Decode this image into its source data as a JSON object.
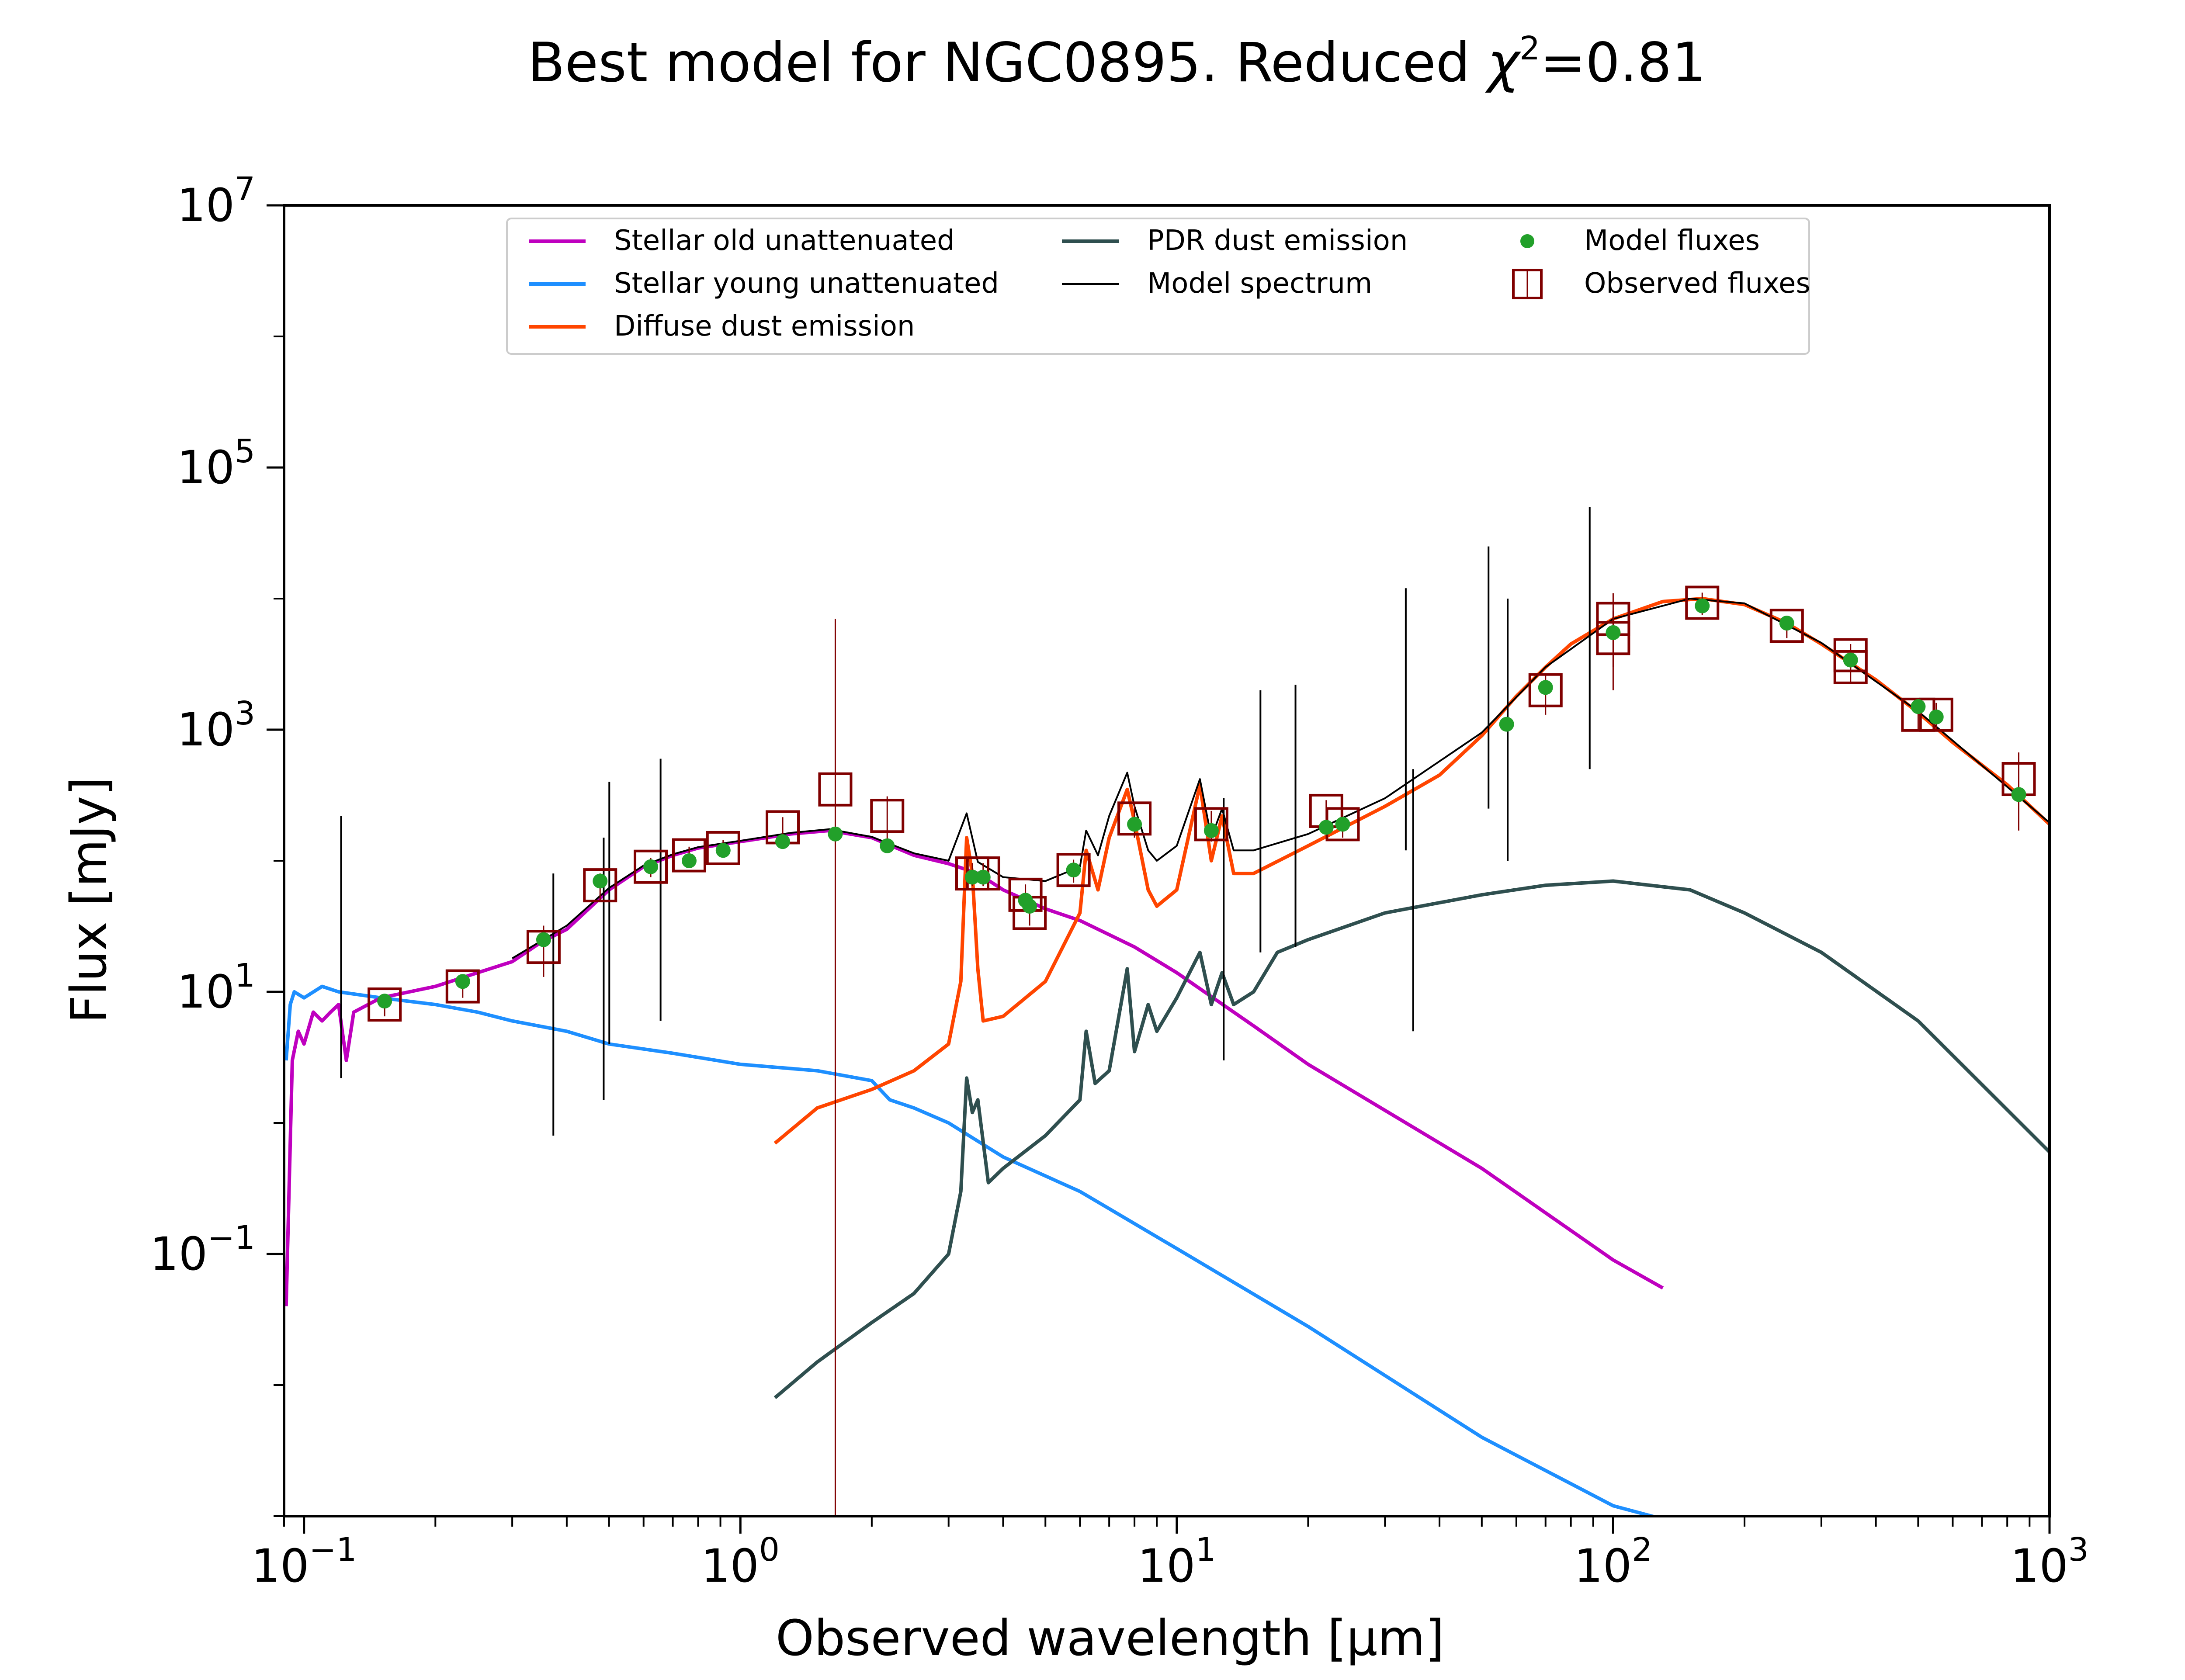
{
  "chart_data": {
    "type": "line",
    "title": "Best model for NGC0895. Reduced χ²=0.81",
    "title_parts": {
      "prefix": "Best model for NGC0895. Reduced ",
      "symbol": "χ",
      "exponent": "2",
      "suffix": "=0.81"
    },
    "xlabel": "Observed wavelength [μm]",
    "ylabel": "Flux [mJy]",
    "x_scale": "log",
    "y_scale": "log",
    "xlim": [
      0.09,
      1000
    ],
    "ylim": [
      0.001,
      10000000
    ],
    "grid": false,
    "legend_position": "top-center",
    "xticks": [
      {
        "base": "10",
        "exp": "−1",
        "value": 0.1
      },
      {
        "base": "10",
        "exp": "0",
        "value": 1
      },
      {
        "base": "10",
        "exp": "1",
        "value": 10
      },
      {
        "base": "10",
        "exp": "2",
        "value": 100
      },
      {
        "base": "10",
        "exp": "3",
        "value": 1000
      }
    ],
    "yticks": [
      {
        "base": "10",
        "exp": "−1",
        "value": 0.1
      },
      {
        "base": "10",
        "exp": "1",
        "value": 10
      },
      {
        "base": "10",
        "exp": "3",
        "value": 1000
      },
      {
        "base": "10",
        "exp": "5",
        "value": 100000
      },
      {
        "base": "10",
        "exp": "7",
        "value": 10000000
      }
    ],
    "series": [
      {
        "name": "Stellar old unattenuated",
        "color": "#bf00bf",
        "x": [
          0.091,
          0.094,
          0.097,
          0.1,
          0.105,
          0.11,
          0.115,
          0.12,
          0.125,
          0.13,
          0.15,
          0.2,
          0.25,
          0.3,
          0.35,
          0.4,
          0.5,
          0.6,
          0.7,
          0.8,
          1.0,
          1.3,
          1.6,
          2.0,
          2.5,
          3.0,
          3.5,
          4.0,
          5.0,
          6.0,
          8.0,
          10,
          15,
          20,
          50,
          100,
          130
        ],
        "y": [
          0.04,
          3,
          5,
          4,
          7,
          6,
          7,
          8,
          3,
          7,
          9,
          11,
          14,
          17,
          24,
          30,
          60,
          90,
          110,
          125,
          140,
          160,
          170,
          150,
          110,
          95,
          80,
          60,
          43,
          35,
          22,
          14,
          5.5,
          2.8,
          0.45,
          0.09,
          0.055
        ]
      },
      {
        "name": "Stellar young unattenuated",
        "color": "#1e8fff",
        "x": [
          0.091,
          0.093,
          0.095,
          0.1,
          0.11,
          0.12,
          0.15,
          0.2,
          0.25,
          0.3,
          0.4,
          0.5,
          0.7,
          1.0,
          1.5,
          2.0,
          2.2,
          2.5,
          3.0,
          4.0,
          6.0,
          10,
          20,
          50,
          100,
          130
        ],
        "y": [
          3,
          8,
          10,
          9,
          11,
          10,
          9,
          8,
          7,
          6,
          5,
          4,
          3.4,
          2.8,
          2.5,
          2.1,
          1.5,
          1.3,
          1.0,
          0.55,
          0.3,
          0.11,
          0.028,
          0.004,
          0.0012,
          0.00095
        ]
      },
      {
        "name": "Diffuse dust emission",
        "color": "#ff4500",
        "x": [
          1.2,
          1.5,
          2.0,
          2.5,
          3.0,
          3.2,
          3.3,
          3.4,
          3.5,
          3.6,
          4.0,
          5.0,
          6.0,
          6.2,
          6.6,
          7.0,
          7.7,
          8.0,
          8.6,
          9.0,
          10,
          11.3,
          12,
          12.7,
          13.5,
          15,
          20,
          30,
          40,
          50,
          60,
          70,
          80,
          100,
          130,
          160,
          200,
          250,
          300,
          400,
          500,
          600,
          800,
          1000
        ],
        "y": [
          0.7,
          1.3,
          1.8,
          2.5,
          4,
          12,
          150,
          80,
          15,
          6,
          6.5,
          12,
          40,
          120,
          60,
          150,
          350,
          200,
          60,
          45,
          60,
          380,
          100,
          220,
          80,
          80,
          130,
          260,
          450,
          900,
          1800,
          3000,
          4500,
          7000,
          9500,
          10000,
          9000,
          6500,
          4500,
          2400,
          1350,
          800,
          380,
          190
        ]
      },
      {
        "name": "PDR dust emission",
        "color": "#2f4f4f",
        "x": [
          1.2,
          1.5,
          2.0,
          2.5,
          3.0,
          3.2,
          3.3,
          3.4,
          3.5,
          3.7,
          4.0,
          5.0,
          6.0,
          6.2,
          6.5,
          7.0,
          7.7,
          8.0,
          8.6,
          9.0,
          10,
          11.3,
          12,
          12.7,
          13.5,
          15,
          17,
          20,
          30,
          50,
          70,
          100,
          150,
          200,
          300,
          500,
          1000
        ],
        "y": [
          0.008,
          0.015,
          0.03,
          0.05,
          0.1,
          0.3,
          2.2,
          1.2,
          1.5,
          0.35,
          0.45,
          0.8,
          1.5,
          5,
          2,
          2.5,
          15,
          3.5,
          8,
          5,
          9,
          20,
          8,
          14,
          8,
          10,
          20,
          25,
          40,
          55,
          65,
          70,
          60,
          40,
          20,
          6,
          0.6
        ]
      },
      {
        "name": "Model spectrum",
        "color": "#000000",
        "x": [
          0.3,
          0.4,
          0.5,
          0.6,
          0.7,
          0.8,
          1.0,
          1.3,
          1.6,
          2.0,
          2.5,
          3.0,
          3.3,
          3.5,
          4.0,
          5.0,
          6.0,
          6.2,
          6.6,
          7.0,
          7.7,
          8.0,
          8.6,
          9.0,
          10,
          11.3,
          12,
          12.7,
          13.5,
          15,
          20,
          30,
          50,
          70,
          100,
          150,
          200,
          300,
          500,
          1000
        ],
        "y": [
          18,
          32,
          62,
          92,
          112,
          127,
          142,
          163,
          174,
          152,
          114,
          100,
          230,
          98,
          75,
          70,
          90,
          170,
          110,
          220,
          470,
          260,
          120,
          100,
          130,
          420,
          150,
          250,
          120,
          120,
          160,
          300,
          950,
          3000,
          7000,
          10000,
          9200,
          4600,
          1380,
          195
        ]
      }
    ],
    "emission_lines": {
      "name": "Model spectrum lines",
      "x": [
        0.1216,
        0.3727,
        0.4861,
        0.5007,
        0.6563,
        12.81,
        15.55,
        18.71,
        33.48,
        34.81,
        51.81,
        57.32,
        88.36
      ],
      "y_top": [
        220,
        80,
        150,
        400,
        600,
        300,
        2000,
        2200,
        12000,
        500,
        25000,
        10000,
        50000
      ]
    },
    "model_fluxes": {
      "name": "Model fluxes",
      "color": "#22a02a",
      "x": [
        0.153,
        0.231,
        0.354,
        0.477,
        0.623,
        0.763,
        0.913,
        1.25,
        1.65,
        2.17,
        3.4,
        3.6,
        4.5,
        4.6,
        5.8,
        8.0,
        12.0,
        22.0,
        24.0,
        57.0,
        70.0,
        100.0,
        160.0,
        250.0,
        350.0,
        500.0,
        550.0,
        850.0
      ],
      "y": [
        8.5,
        12,
        25,
        70,
        90,
        100,
        120,
        140,
        160,
        130,
        75,
        75,
        50,
        45,
        85,
        190,
        170,
        180,
        190,
        1100,
        2100,
        5500,
        8800,
        6500,
        3400,
        1500,
        1250,
        320
      ]
    },
    "observed_fluxes": {
      "name": "Observed fluxes",
      "color": "#800000",
      "x": [
        0.153,
        0.231,
        0.354,
        0.477,
        0.623,
        0.763,
        0.913,
        1.25,
        1.65,
        2.17,
        3.4,
        3.6,
        4.5,
        4.6,
        5.8,
        8.0,
        12.0,
        22.0,
        24.0,
        70.0,
        100.0,
        100.0,
        160.0,
        250.0,
        350.0,
        350.0,
        500.0,
        550.0,
        850.0
      ],
      "y": [
        8,
        11,
        22,
        65,
        90,
        110,
        125,
        180,
        350,
        220,
        80,
        80,
        55,
        40,
        85,
        210,
        190,
        240,
        190,
        2000,
        7000,
        5000,
        9300,
        6200,
        3700,
        3000,
        1300,
        1300,
        420
      ],
      "err_low": [
        6.5,
        9,
        13,
        50,
        75,
        92,
        106,
        145,
        0.001,
        130,
        64,
        64,
        44,
        32,
        68,
        150,
        140,
        190,
        150,
        1300,
        3000,
        2000,
        7500,
        5000,
        2900,
        2300,
        1000,
        1000,
        170
      ],
      "err_high": [
        9.5,
        13,
        32,
        80,
        105,
        128,
        144,
        215,
        7000,
        310,
        96,
        96,
        66,
        48,
        102,
        270,
        240,
        290,
        230,
        2700,
        11000,
        8000,
        11100,
        7400,
        4500,
        3700,
        1600,
        1600,
        670
      ]
    }
  }
}
